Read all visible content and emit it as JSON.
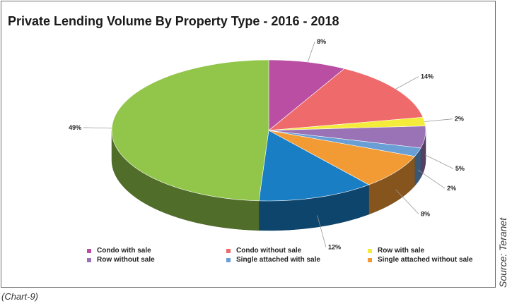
{
  "title": "Private Lending Volume By Property Type - 2016 - 2018",
  "caption": "(Chart-9)",
  "source": "Source: Teranet",
  "chart_data": {
    "type": "pie",
    "title": "Private Lending Volume By Property Type - 2016 - 2018",
    "slices": [
      {
        "label": "Condo with sale",
        "value": 8,
        "display": "8%",
        "color": "#b94ea3"
      },
      {
        "label": "Condo without sale",
        "value": 14,
        "display": "14%",
        "color": "#ef6a6a"
      },
      {
        "label": "Row with sale",
        "value": 2,
        "display": "2%",
        "color": "#f4ec3a"
      },
      {
        "label": "Row without sale",
        "value": 5,
        "display": "5%",
        "color": "#9a72b6"
      },
      {
        "label": "Single attached with sale",
        "value": 2,
        "display": "2%",
        "color": "#6a9fd6"
      },
      {
        "label": "Single attached without sale",
        "value": 8,
        "display": "8%",
        "color": "#f29b35"
      },
      {
        "label": "",
        "value": 12,
        "display": "12%",
        "color": "#1a7ec4"
      },
      {
        "label": "",
        "value": 49,
        "display": "49%",
        "color": "#92c64a"
      }
    ],
    "legend_position": "bottom"
  }
}
